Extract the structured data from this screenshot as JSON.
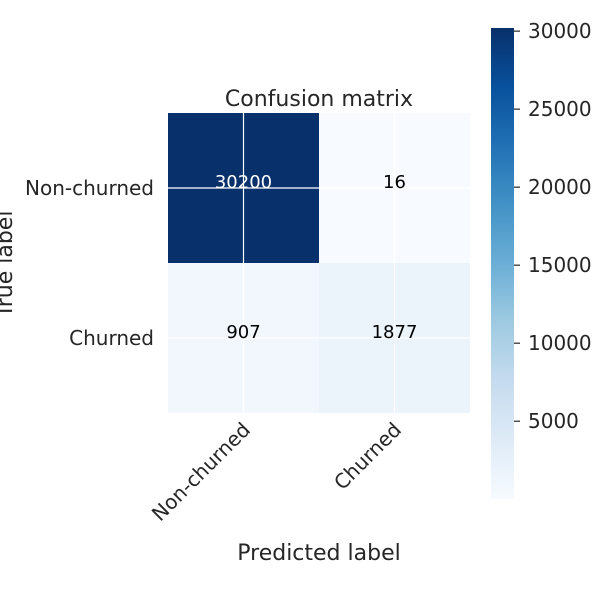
{
  "chart_data": {
    "type": "heatmap",
    "title": "Confusion matrix",
    "xlabel": "Predicted label",
    "ylabel": "True label",
    "x_categories": [
      "Non-churned",
      "Churned"
    ],
    "y_categories": [
      "Non-churned",
      "Churned"
    ],
    "values": [
      [
        30200,
        16
      ],
      [
        907,
        1877
      ]
    ],
    "colormap": "Blues",
    "colorbar": {
      "range": [
        16,
        30200
      ],
      "ticks": [
        5000,
        10000,
        15000,
        20000,
        25000,
        30000
      ],
      "tick_labels": [
        "5000",
        "10000",
        "15000",
        "20000",
        "25000",
        "30000"
      ]
    },
    "grid": true
  }
}
